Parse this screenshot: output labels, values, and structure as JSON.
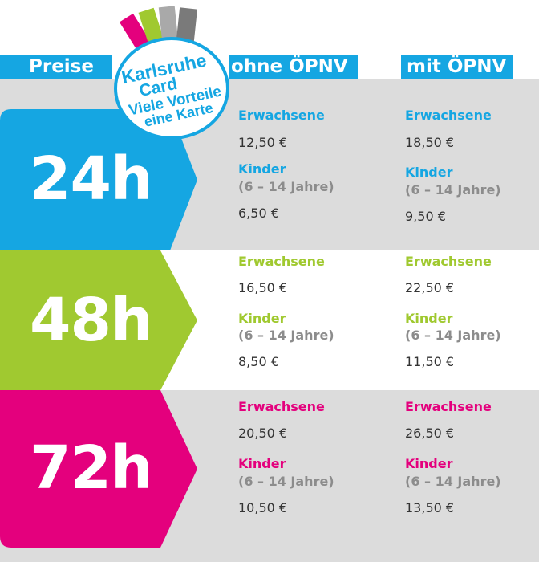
{
  "colors": {
    "blue": "#15a6e2",
    "green": "#a0c930",
    "magenta": "#e4007d",
    "band_gray": "#dcdcdc",
    "child_gray": "#8c8c8c",
    "price_text": "#333333"
  },
  "header": {
    "preise": "Preise",
    "ohne": "ohne ÖPNV",
    "mit": "mit ÖPNV"
  },
  "logo": {
    "line1": "Karlsruhe",
    "line2": "Card",
    "line3": "Viele Vorteile",
    "line4": "eine Karte"
  },
  "rows": [
    {
      "label": "24h",
      "ohne": {
        "adult_label": "Erwachsene",
        "adult_price": "12,50 €",
        "child_label": "Kinder",
        "child_age": "(6 – 14 Jahre)",
        "child_price": "6,50 €"
      },
      "mit": {
        "adult_label": "Erwachsene",
        "adult_price": "18,50 €",
        "child_label": "Kinder",
        "child_age": "(6 – 14 Jahre)",
        "child_price": "9,50 €"
      }
    },
    {
      "label": "48h",
      "ohne": {
        "adult_label": "Erwachsene",
        "adult_price": "16,50 €",
        "child_label": "Kinder",
        "child_age": "(6 – 14 Jahre)",
        "child_price": "8,50 €"
      },
      "mit": {
        "adult_label": "Erwachsene",
        "adult_price": "22,50 €",
        "child_label": "Kinder",
        "child_age": "(6 – 14 Jahre)",
        "child_price": "11,50 €"
      }
    },
    {
      "label": "72h",
      "ohne": {
        "adult_label": "Erwachsene",
        "adult_price": "20,50 €",
        "child_label": "Kinder",
        "child_age": "(6 – 14 Jahre)",
        "child_price": "10,50 €"
      },
      "mit": {
        "adult_label": "Erwachsene",
        "adult_price": "26,50 €",
        "child_label": "Kinder",
        "child_age": "(6 – 14 Jahre)",
        "child_price": "13,50 €"
      }
    }
  ]
}
